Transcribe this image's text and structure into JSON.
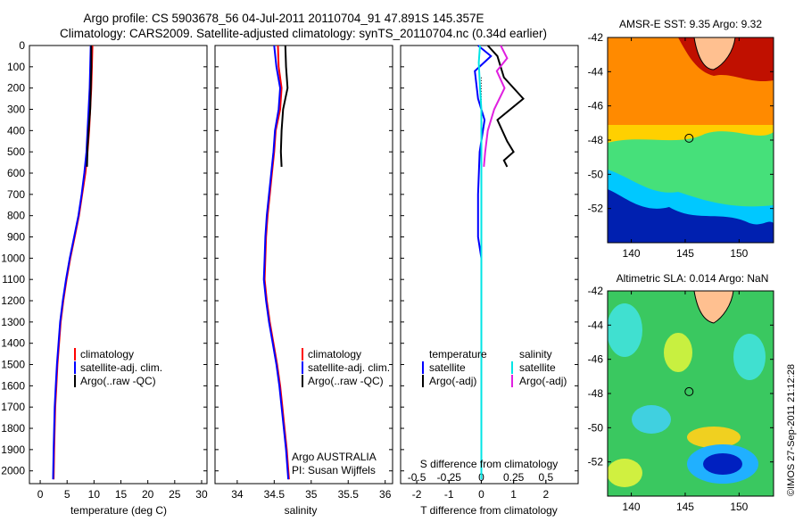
{
  "titles": {
    "line1": "Argo profile: CS 5903678_56 04-Jul-2011 20110704_91 47.891S 145.357E",
    "line2": "Climatology: CARS2009. Satellite-adjusted climatology: synTS_20110704.nc (0.34d earlier)"
  },
  "credit": "©IMOS 27-Sep-2011 21:12:28",
  "depth_ticks": [
    0,
    100,
    200,
    300,
    400,
    500,
    600,
    700,
    800,
    900,
    1000,
    1100,
    1200,
    1300,
    1400,
    1500,
    1600,
    1700,
    1800,
    1900,
    2000
  ],
  "colors": {
    "climatology": "#ff0000",
    "satellite": "#0000ff",
    "argo": "#000000",
    "sal_satellite": "#00e5e5",
    "sal_argo": "#e020e0"
  },
  "chart_data": [
    {
      "type": "line",
      "title": "",
      "xlabel": "temperature (deg C)",
      "ylabel": "",
      "xlim": [
        -2,
        31
      ],
      "ylim": [
        2060,
        0
      ],
      "xticks": [
        0,
        5,
        10,
        15,
        20,
        25,
        30
      ],
      "legend": [
        "climatology",
        "satellite-adj. clim.",
        "Argo(..raw -QC)"
      ],
      "series": [
        {
          "name": "climatology",
          "points": [
            [
              9.7,
              0
            ],
            [
              9.6,
              100
            ],
            [
              9.5,
              200
            ],
            [
              9.3,
              300
            ],
            [
              9.1,
              400
            ],
            [
              8.8,
              500
            ],
            [
              8.4,
              600
            ],
            [
              7.8,
              700
            ],
            [
              7.2,
              800
            ],
            [
              6.4,
              900
            ],
            [
              5.6,
              1000
            ],
            [
              4.9,
              1100
            ],
            [
              4.3,
              1200
            ],
            [
              3.8,
              1300
            ],
            [
              3.5,
              1400
            ],
            [
              3.2,
              1500
            ],
            [
              3.0,
              1600
            ],
            [
              2.8,
              1700
            ],
            [
              2.7,
              1800
            ],
            [
              2.6,
              1900
            ],
            [
              2.5,
              2040
            ]
          ]
        },
        {
          "name": "satellite-adj. clim.",
          "points": [
            [
              9.4,
              0
            ],
            [
              9.3,
              100
            ],
            [
              9.2,
              200
            ],
            [
              9.0,
              300
            ],
            [
              8.8,
              400
            ],
            [
              8.6,
              500
            ],
            [
              8.2,
              600
            ],
            [
              7.7,
              700
            ],
            [
              7.1,
              800
            ],
            [
              6.3,
              900
            ],
            [
              5.5,
              1000
            ],
            [
              4.8,
              1100
            ],
            [
              4.2,
              1200
            ],
            [
              3.7,
              1300
            ],
            [
              3.4,
              1400
            ],
            [
              3.1,
              1500
            ],
            [
              2.9,
              1600
            ],
            [
              2.7,
              1700
            ],
            [
              2.6,
              1800
            ],
            [
              2.5,
              1900
            ],
            [
              2.4,
              2040
            ]
          ]
        },
        {
          "name": "Argo(..raw -QC)",
          "points": [
            [
              9.5,
              0
            ],
            [
              9.5,
              100
            ],
            [
              9.4,
              200
            ],
            [
              9.3,
              300
            ],
            [
              9.0,
              400
            ],
            [
              8.8,
              480
            ],
            [
              8.7,
              570
            ]
          ]
        }
      ]
    },
    {
      "type": "line",
      "title": "",
      "xlabel": "salinity",
      "ylabel": "",
      "xlim": [
        33.7,
        36.1
      ],
      "ylim": [
        2060,
        0
      ],
      "xticks": [
        34,
        34.5,
        35,
        35.5,
        36
      ],
      "legend": [
        "climatology",
        "satellite-adj. clim.",
        "Argo(..raw -QC)"
      ],
      "footer": [
        "Argo AUSTRALIA",
        "PI: Susan Wijffels"
      ],
      "series": [
        {
          "name": "climatology",
          "points": [
            [
              34.55,
              0
            ],
            [
              34.56,
              100
            ],
            [
              34.6,
              200
            ],
            [
              34.58,
              300
            ],
            [
              34.52,
              400
            ],
            [
              34.5,
              500
            ],
            [
              34.47,
              600
            ],
            [
              34.44,
              700
            ],
            [
              34.41,
              800
            ],
            [
              34.39,
              900
            ],
            [
              34.38,
              1000
            ],
            [
              34.37,
              1100
            ],
            [
              34.4,
              1200
            ],
            [
              34.44,
              1300
            ],
            [
              34.49,
              1400
            ],
            [
              34.54,
              1500
            ],
            [
              34.58,
              1600
            ],
            [
              34.61,
              1700
            ],
            [
              34.64,
              1800
            ],
            [
              34.67,
              1900
            ],
            [
              34.7,
              2040
            ]
          ]
        },
        {
          "name": "satellite-adj. clim.",
          "points": [
            [
              34.5,
              0
            ],
            [
              34.53,
              100
            ],
            [
              34.58,
              200
            ],
            [
              34.56,
              300
            ],
            [
              34.51,
              400
            ],
            [
              34.49,
              500
            ],
            [
              34.46,
              600
            ],
            [
              34.43,
              700
            ],
            [
              34.4,
              800
            ],
            [
              34.38,
              900
            ],
            [
              34.37,
              1000
            ],
            [
              34.36,
              1100
            ],
            [
              34.39,
              1200
            ],
            [
              34.43,
              1300
            ],
            [
              34.48,
              1400
            ],
            [
              34.53,
              1500
            ],
            [
              34.57,
              1600
            ],
            [
              34.6,
              1700
            ],
            [
              34.63,
              1800
            ],
            [
              34.66,
              1900
            ],
            [
              34.69,
              2040
            ]
          ]
        },
        {
          "name": "Argo(..raw -QC)",
          "points": [
            [
              34.65,
              0
            ],
            [
              34.66,
              100
            ],
            [
              34.68,
              200
            ],
            [
              34.62,
              300
            ],
            [
              34.6,
              400
            ],
            [
              34.59,
              500
            ],
            [
              34.6,
              570
            ]
          ]
        }
      ]
    },
    {
      "type": "line",
      "title": "",
      "xlabel": "T difference from climatology",
      "xlabel2": "S difference from climatology",
      "ylabel": "",
      "xlim": [
        -2.5,
        3
      ],
      "x2lim": [
        -0.625,
        0.75
      ],
      "ylim": [
        2060,
        0
      ],
      "xticks": [
        -2,
        -1,
        0,
        1,
        2
      ],
      "x2ticks": [
        -0.5,
        -0.25,
        0,
        0.25,
        0.5
      ],
      "x2ticklabels": [
        "-0.5",
        "-0.25",
        "0",
        "0.25",
        "0.5"
      ],
      "legend_headers": [
        "temperature",
        "salinity"
      ],
      "legend": [
        "satellite",
        "Argo(-adj)",
        "satellite",
        "Argo(-adj)"
      ],
      "series": [
        {
          "name": "temperature satellite",
          "axis": "T",
          "points": [
            [
              -0.1,
              0
            ],
            [
              0.3,
              50
            ],
            [
              -0.2,
              120
            ],
            [
              -0.1,
              250
            ],
            [
              0.1,
              350
            ],
            [
              -0.05,
              500
            ],
            [
              -0.1,
              700
            ],
            [
              -0.1,
              900
            ],
            [
              0,
              1000
            ],
            [
              0,
              1500
            ],
            [
              0,
              2040
            ]
          ]
        },
        {
          "name": "temperature Argo(-adj)",
          "axis": "T",
          "points": [
            [
              0.2,
              0
            ],
            [
              0.5,
              50
            ],
            [
              0.7,
              150
            ],
            [
              1.3,
              250
            ],
            [
              0.5,
              350
            ],
            [
              0.8,
              450
            ],
            [
              1.0,
              500
            ],
            [
              0.7,
              540
            ],
            [
              0.8,
              570
            ]
          ]
        },
        {
          "name": "salinity satellite",
          "axis": "S",
          "points": [
            [
              -0.01,
              0
            ],
            [
              -0.02,
              80
            ],
            [
              -0.01,
              200
            ],
            [
              0,
              300
            ],
            [
              0,
              600
            ],
            [
              0,
              1000
            ],
            [
              0,
              1500
            ],
            [
              0,
              2040
            ]
          ]
        },
        {
          "name": "salinity Argo(-adj)",
          "axis": "S",
          "points": [
            [
              0.15,
              0
            ],
            [
              0.2,
              60
            ],
            [
              0.12,
              120
            ],
            [
              0.18,
              200
            ],
            [
              0.1,
              300
            ],
            [
              0.05,
              400
            ],
            [
              0.03,
              500
            ],
            [
              0.02,
              570
            ]
          ]
        }
      ]
    },
    {
      "type": "heatmap",
      "title": "AMSR-E SST: 9.35 Argo: 9.32",
      "xlim": [
        137.8,
        153.2
      ],
      "ylim": [
        -54,
        -42
      ],
      "xticks": [
        140,
        145,
        150
      ],
      "yticks": [
        -42,
        -44,
        -46,
        -48,
        -50,
        -52
      ],
      "marker": [
        145.357,
        -47.891
      ]
    },
    {
      "type": "heatmap",
      "title": "Altimetric SLA: 0.014 Argo: NaN",
      "xlim": [
        137.8,
        153.2
      ],
      "ylim": [
        -54,
        -42
      ],
      "xticks": [
        140,
        145,
        150
      ],
      "yticks": [
        -42,
        -44,
        -46,
        -48,
        -50,
        -52
      ],
      "marker": [
        145.357,
        -47.891
      ]
    }
  ]
}
